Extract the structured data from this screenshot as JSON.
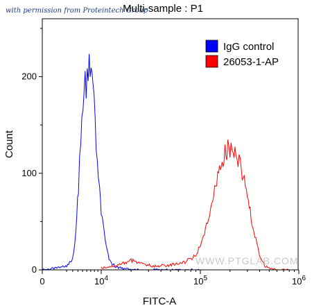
{
  "permission_note": "with permission from Proteintech Group",
  "watermark": "WWW.PTGLAB.COM",
  "colors": {
    "igg": "#0000ff",
    "antibody": "#ff0000",
    "axis": "#000000"
  },
  "chart_data": {
    "type": "line",
    "title": "Multi-sample : P1",
    "xlabel": "FITC-A",
    "ylabel": "Count",
    "xscale": "biexponential",
    "xlim": [
      0,
      1000000
    ],
    "ylim": [
      0,
      260
    ],
    "grid": false,
    "legend_position": "top-right",
    "x_ticks": [
      {
        "value": 0,
        "label": "0"
      },
      {
        "value": 10000,
        "base": "10",
        "exp": "4"
      },
      {
        "value": 100000,
        "base": "10",
        "exp": "5"
      },
      {
        "value": 1000000,
        "base": "10",
        "exp": "6"
      }
    ],
    "y_ticks": [
      {
        "value": 0,
        "label": "0"
      },
      {
        "value": 100,
        "label": "100"
      },
      {
        "value": 200,
        "label": "200"
      }
    ],
    "series": [
      {
        "name": "IgG control",
        "color": "#0000ff",
        "points": [
          [
            0,
            0
          ],
          [
            1000,
            2
          ],
          [
            2000,
            4
          ],
          [
            3000,
            12
          ],
          [
            3600,
            40
          ],
          [
            4100,
            85
          ],
          [
            4600,
            135
          ],
          [
            5100,
            170
          ],
          [
            5600,
            190
          ],
          [
            6100,
            196
          ],
          [
            6600,
            208
          ],
          [
            7100,
            200
          ],
          [
            7600,
            185
          ],
          [
            8200,
            150
          ],
          [
            8800,
            120
          ],
          [
            9500,
            85
          ],
          [
            10000,
            60
          ],
          [
            11000,
            28
          ],
          [
            12000,
            10
          ],
          [
            14000,
            3
          ],
          [
            17000,
            1
          ],
          [
            25000,
            0
          ],
          [
            40000,
            0
          ],
          [
            60000,
            0
          ],
          [
            100000,
            0
          ]
        ]
      },
      {
        "name": "26053-1-AP",
        "color": "#ff0000",
        "points": [
          [
            10000,
            2
          ],
          [
            15000,
            5
          ],
          [
            20000,
            10
          ],
          [
            25000,
            6
          ],
          [
            35000,
            4
          ],
          [
            50000,
            5
          ],
          [
            70000,
            8
          ],
          [
            90000,
            15
          ],
          [
            110000,
            38
          ],
          [
            130000,
            65
          ],
          [
            150000,
            95
          ],
          [
            170000,
            115
          ],
          [
            190000,
            125
          ],
          [
            210000,
            130
          ],
          [
            230000,
            123
          ],
          [
            260000,
            105
          ],
          [
            300000,
            75
          ],
          [
            350000,
            40
          ],
          [
            400000,
            15
          ],
          [
            450000,
            4
          ],
          [
            500000,
            1
          ],
          [
            600000,
            0
          ],
          [
            800000,
            0
          ]
        ]
      }
    ]
  }
}
